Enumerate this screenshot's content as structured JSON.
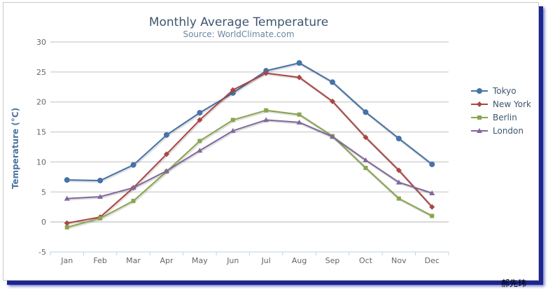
{
  "chart_data": {
    "type": "line",
    "title": "Monthly Average Temperature",
    "subtitle": "Source: WorldClimate.com",
    "xlabel": "",
    "ylabel": "Temperature (°C)",
    "categories": [
      "Jan",
      "Feb",
      "Mar",
      "Apr",
      "May",
      "Jun",
      "Jul",
      "Aug",
      "Sep",
      "Oct",
      "Nov",
      "Dec"
    ],
    "ylim": [
      -5,
      30
    ],
    "yticks": [
      -5,
      0,
      5,
      10,
      15,
      20,
      25,
      30
    ],
    "grid": true,
    "legend_position": "right",
    "series": [
      {
        "name": "Tokyo",
        "color": "#4572a7",
        "marker": "circle",
        "values": [
          7.0,
          6.9,
          9.5,
          14.5,
          18.2,
          21.5,
          25.2,
          26.5,
          23.3,
          18.3,
          13.9,
          9.6
        ]
      },
      {
        "name": "New York",
        "color": "#aa4643",
        "marker": "diamond",
        "values": [
          -0.2,
          0.8,
          5.7,
          11.3,
          17.0,
          22.0,
          24.8,
          24.1,
          20.1,
          14.1,
          8.6,
          2.5
        ]
      },
      {
        "name": "Berlin",
        "color": "#89a54e",
        "marker": "square",
        "values": [
          -0.9,
          0.6,
          3.5,
          8.4,
          13.5,
          17.0,
          18.6,
          17.9,
          14.3,
          9.0,
          3.9,
          1.0
        ]
      },
      {
        "name": "London",
        "color": "#80699b",
        "marker": "triangle",
        "values": [
          3.9,
          4.2,
          5.7,
          8.5,
          11.9,
          15.2,
          17.0,
          16.6,
          14.2,
          10.3,
          6.6,
          4.8
        ]
      }
    ]
  },
  "watermark": "郝先玮"
}
